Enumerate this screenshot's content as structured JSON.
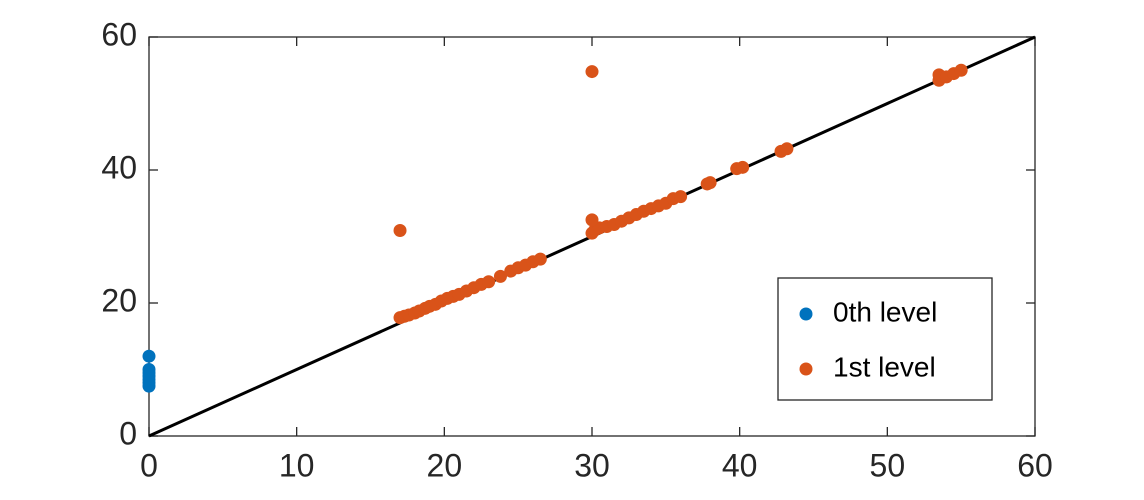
{
  "chart_data": {
    "type": "scatter",
    "series": [
      {
        "name": "0th level",
        "color": "#0072BD",
        "x": [
          0,
          0,
          0,
          0,
          0,
          0,
          0
        ],
        "values": [
          12,
          10,
          9.5,
          9,
          8.5,
          8,
          7.5
        ]
      },
      {
        "name": "1st level",
        "color": "#D95319",
        "x": [
          17,
          17.3,
          17.6,
          18,
          18.3,
          18.7,
          19,
          19.4,
          19.8,
          20.2,
          20.6,
          21,
          21.5,
          22,
          22.5,
          23,
          23.8,
          24.5,
          25,
          25.5,
          26,
          26.5,
          30,
          30.2,
          30.5,
          31,
          31.5,
          32,
          32.5,
          33,
          33.5,
          34,
          34.5,
          35,
          35.5,
          36,
          37.8,
          38,
          39.8,
          40.2,
          42.8,
          43.2,
          53.5,
          53.5,
          54,
          54.5,
          55,
          17,
          30,
          30
        ],
        "values": [
          17.8,
          18,
          18.2,
          18.5,
          18.8,
          19.2,
          19.5,
          19.8,
          20.3,
          20.7,
          21,
          21.3,
          21.8,
          22.3,
          22.8,
          23.2,
          24,
          24.8,
          25.3,
          25.7,
          26.2,
          26.6,
          30.5,
          31,
          31.3,
          31.5,
          31.8,
          32.3,
          32.8,
          33.3,
          33.8,
          34.2,
          34.6,
          35,
          35.7,
          36,
          37.9,
          38.1,
          40.2,
          40.4,
          42.8,
          43.2,
          53.5,
          54.3,
          54,
          54.5,
          55,
          30.9,
          54.8,
          32.5
        ]
      }
    ],
    "reference_line": {
      "color": "#000000",
      "x": [
        0,
        60
      ],
      "values": [
        0,
        60
      ]
    },
    "xlim": [
      0,
      60
    ],
    "ylim": [
      0,
      60
    ],
    "xticks": [
      0,
      10,
      20,
      30,
      40,
      50,
      60
    ],
    "yticks": [
      0,
      20,
      40,
      60
    ],
    "grid": false,
    "legend": "lower right"
  }
}
